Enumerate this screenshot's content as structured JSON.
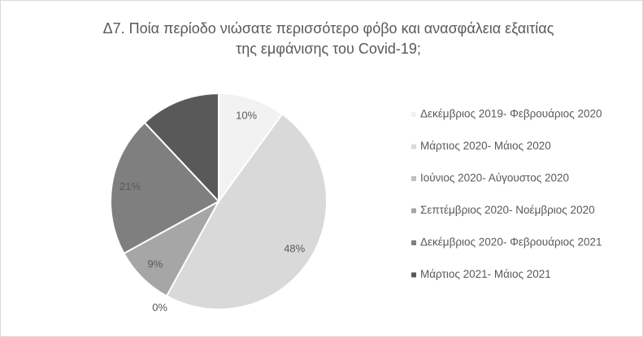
{
  "chart_data": {
    "type": "pie",
    "title": [
      "Δ7. Ποία περίοδο νιώσατε περισσότερο φόβο και ανασφάλεια εξαιτίας",
      "της εμφάνισης του Covid-19;"
    ],
    "categories": [
      "Δεκέμβριος 2019- Φεβρουάριος 2020",
      "Μάρτιος 2020- Μάιος 2020",
      "Ιούνιος 2020- Αύγουστος 2020",
      "Σεπτέμβριος 2020- Νοέμβριος 2020",
      "Δεκέμβριος 2020- Φεβρουάριος 2021",
      "Μάρτιος 2021- Μάιος 2021"
    ],
    "values": [
      10,
      48,
      0,
      9,
      21,
      12
    ],
    "value_labels": [
      "10%",
      "48%",
      "0%",
      "9%",
      "21%",
      "12%"
    ],
    "colors": [
      "#f2f2f2",
      "#d9d9d9",
      "#bfbfbf",
      "#a6a6a6",
      "#7f7f7f",
      "#595959"
    ],
    "legend": "right"
  }
}
